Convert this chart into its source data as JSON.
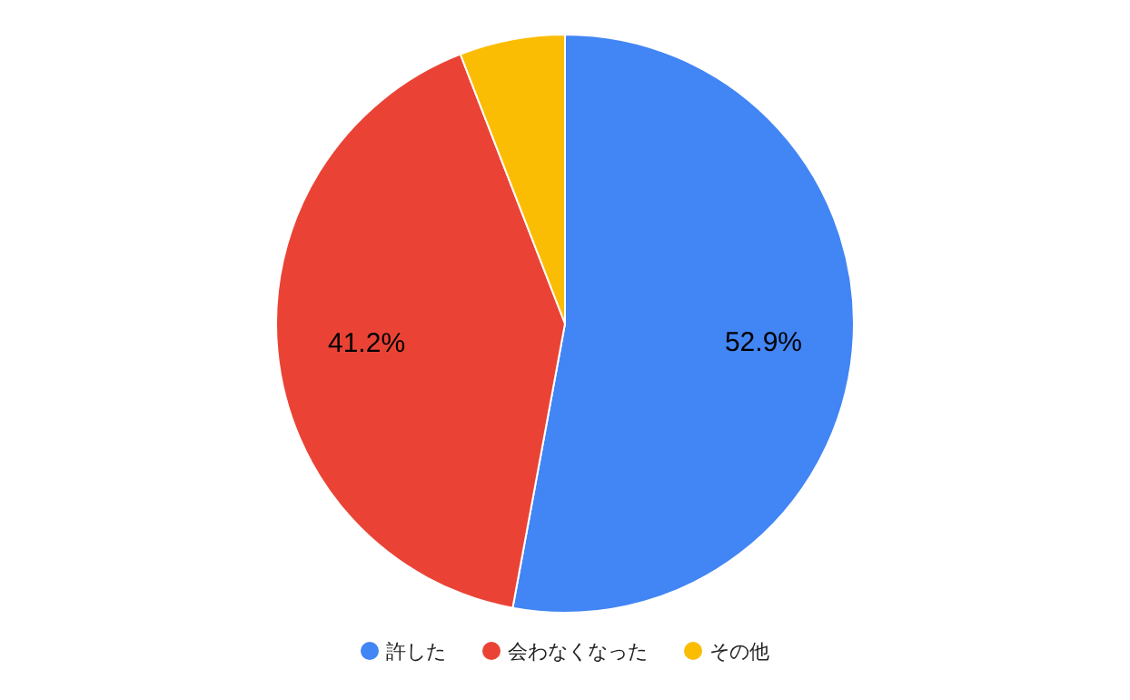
{
  "chart_data": {
    "type": "pie",
    "categories": [
      "許した",
      "会わなくなった",
      "その他"
    ],
    "values": [
      52.9,
      41.2,
      5.9
    ],
    "colors": [
      "#4285f4",
      "#ea4335",
      "#fbbc04"
    ],
    "value_labels": [
      "52.9%",
      "41.2%",
      null
    ],
    "legend": "bottom"
  }
}
